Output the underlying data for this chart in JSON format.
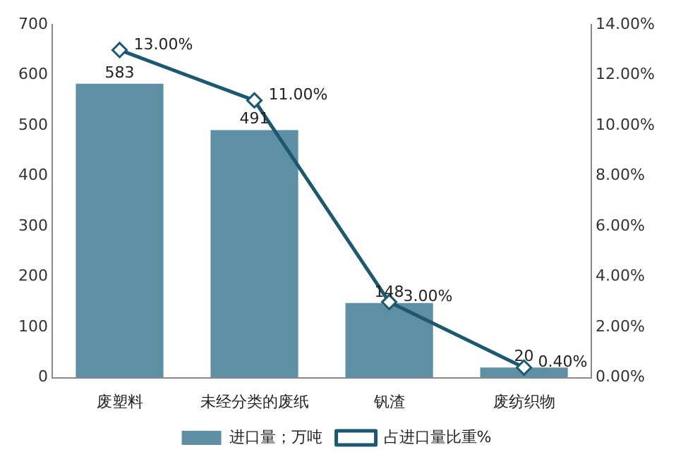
{
  "chart_data": {
    "type": "bar",
    "categories": [
      "废塑料",
      "未经分类的废纸",
      "钒渣",
      "废纺织物"
    ],
    "series": [
      {
        "name": "进口量；万吨",
        "color": "#5f8fa5",
        "values": [
          583,
          491,
          148,
          20
        ],
        "value_labels": [
          "583",
          "491",
          "148",
          "20"
        ]
      },
      {
        "name": "占进口量比重%",
        "type": "line",
        "axis": "y2",
        "color": "#1d5871",
        "marker": "diamond",
        "values": [
          13,
          11,
          3,
          0.4
        ],
        "value_labels": [
          "13.00%",
          "11.00%",
          "3.00%",
          "0.40%"
        ]
      }
    ],
    "ylim": [
      0,
      700
    ],
    "yticks": [
      0,
      100,
      200,
      300,
      400,
      500,
      600,
      700
    ],
    "y2lim": [
      0,
      14
    ],
    "y2ticks": [
      {
        "value": 0,
        "label": "0.00%"
      },
      {
        "value": 2,
        "label": "2.00%"
      },
      {
        "value": 4,
        "label": "4.00%"
      },
      {
        "value": 6,
        "label": "6.00%"
      },
      {
        "value": 8,
        "label": "8.00%"
      },
      {
        "value": 10,
        "label": "10.00%"
      },
      {
        "value": 12,
        "label": "12.00%"
      },
      {
        "value": 14,
        "label": "14.00%"
      }
    ],
    "grid": false,
    "legend": "bottom"
  }
}
